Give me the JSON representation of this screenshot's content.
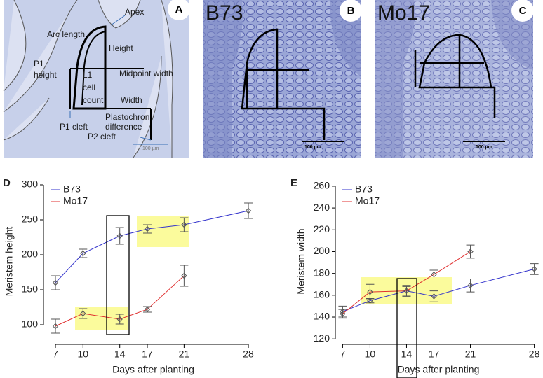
{
  "panels": {
    "a": {
      "letter": "A",
      "apex": "Apex",
      "arc_length": "Arc length",
      "height": "Height",
      "midpoint_width": "Midpoint width",
      "p1_height": [
        "P1",
        "height"
      ],
      "l1_cell_count": [
        "L1",
        "cell",
        "count"
      ],
      "width": "Width",
      "plastochron_difference": [
        "Plastochron",
        "difference"
      ],
      "p1_cleft": "P1 cleft",
      "p2_cleft": "P2 cleft",
      "scale": "100 µm"
    },
    "b": {
      "letter": "B",
      "label": "B73",
      "scale": "100 µm"
    },
    "c": {
      "letter": "C",
      "label": "Mo17",
      "scale": "100 µm"
    }
  },
  "chart_data": [
    {
      "type": "line",
      "panel": "D",
      "ylabel": "Meristem height",
      "xlabel": "Days after planting",
      "xlim": [
        5.7,
        29.6
      ],
      "xticks": [
        7,
        10,
        14,
        17,
        21,
        28
      ],
      "ylim": [
        72,
        309
      ],
      "yticks": [
        100,
        150,
        200,
        250,
        300
      ],
      "legend": "top-left",
      "series": [
        {
          "name": "B73",
          "color": "#3333cc",
          "x": [
            7,
            10,
            14,
            17,
            21,
            28
          ],
          "values": [
            160,
            202,
            227,
            237,
            243,
            263
          ],
          "errors": [
            10,
            6,
            12,
            6,
            10,
            11
          ]
        },
        {
          "name": "Mo17",
          "color": "#e03030",
          "x": [
            7,
            10,
            14,
            17,
            21
          ],
          "values": [
            98,
            116,
            108,
            122,
            170
          ],
          "errors": [
            10,
            7,
            7,
            4,
            15
          ]
        }
      ]
    },
    {
      "type": "line",
      "panel": "E",
      "ylabel": "Meristem width",
      "xlabel": "Days after planting",
      "xlim": [
        6.2,
        28.8
      ],
      "xticks": [
        7,
        10,
        14,
        17,
        21,
        28
      ],
      "ylim": [
        115,
        267
      ],
      "yticks": [
        120,
        140,
        160,
        180,
        200,
        220,
        240,
        260
      ],
      "legend": "top-left",
      "series": [
        {
          "name": "B73",
          "color": "#3333cc",
          "x": [
            7,
            10,
            14,
            17,
            21,
            28
          ],
          "values": [
            145,
            155,
            164,
            159,
            169,
            184
          ],
          "errors": [
            5,
            2,
            4,
            5,
            6,
            5
          ]
        },
        {
          "name": "Mo17",
          "color": "#e03030",
          "x": [
            7,
            10,
            14,
            17,
            21
          ],
          "values": [
            143,
            163,
            164,
            179,
            200
          ],
          "errors": [
            4,
            7,
            5,
            4,
            6
          ]
        }
      ]
    }
  ]
}
